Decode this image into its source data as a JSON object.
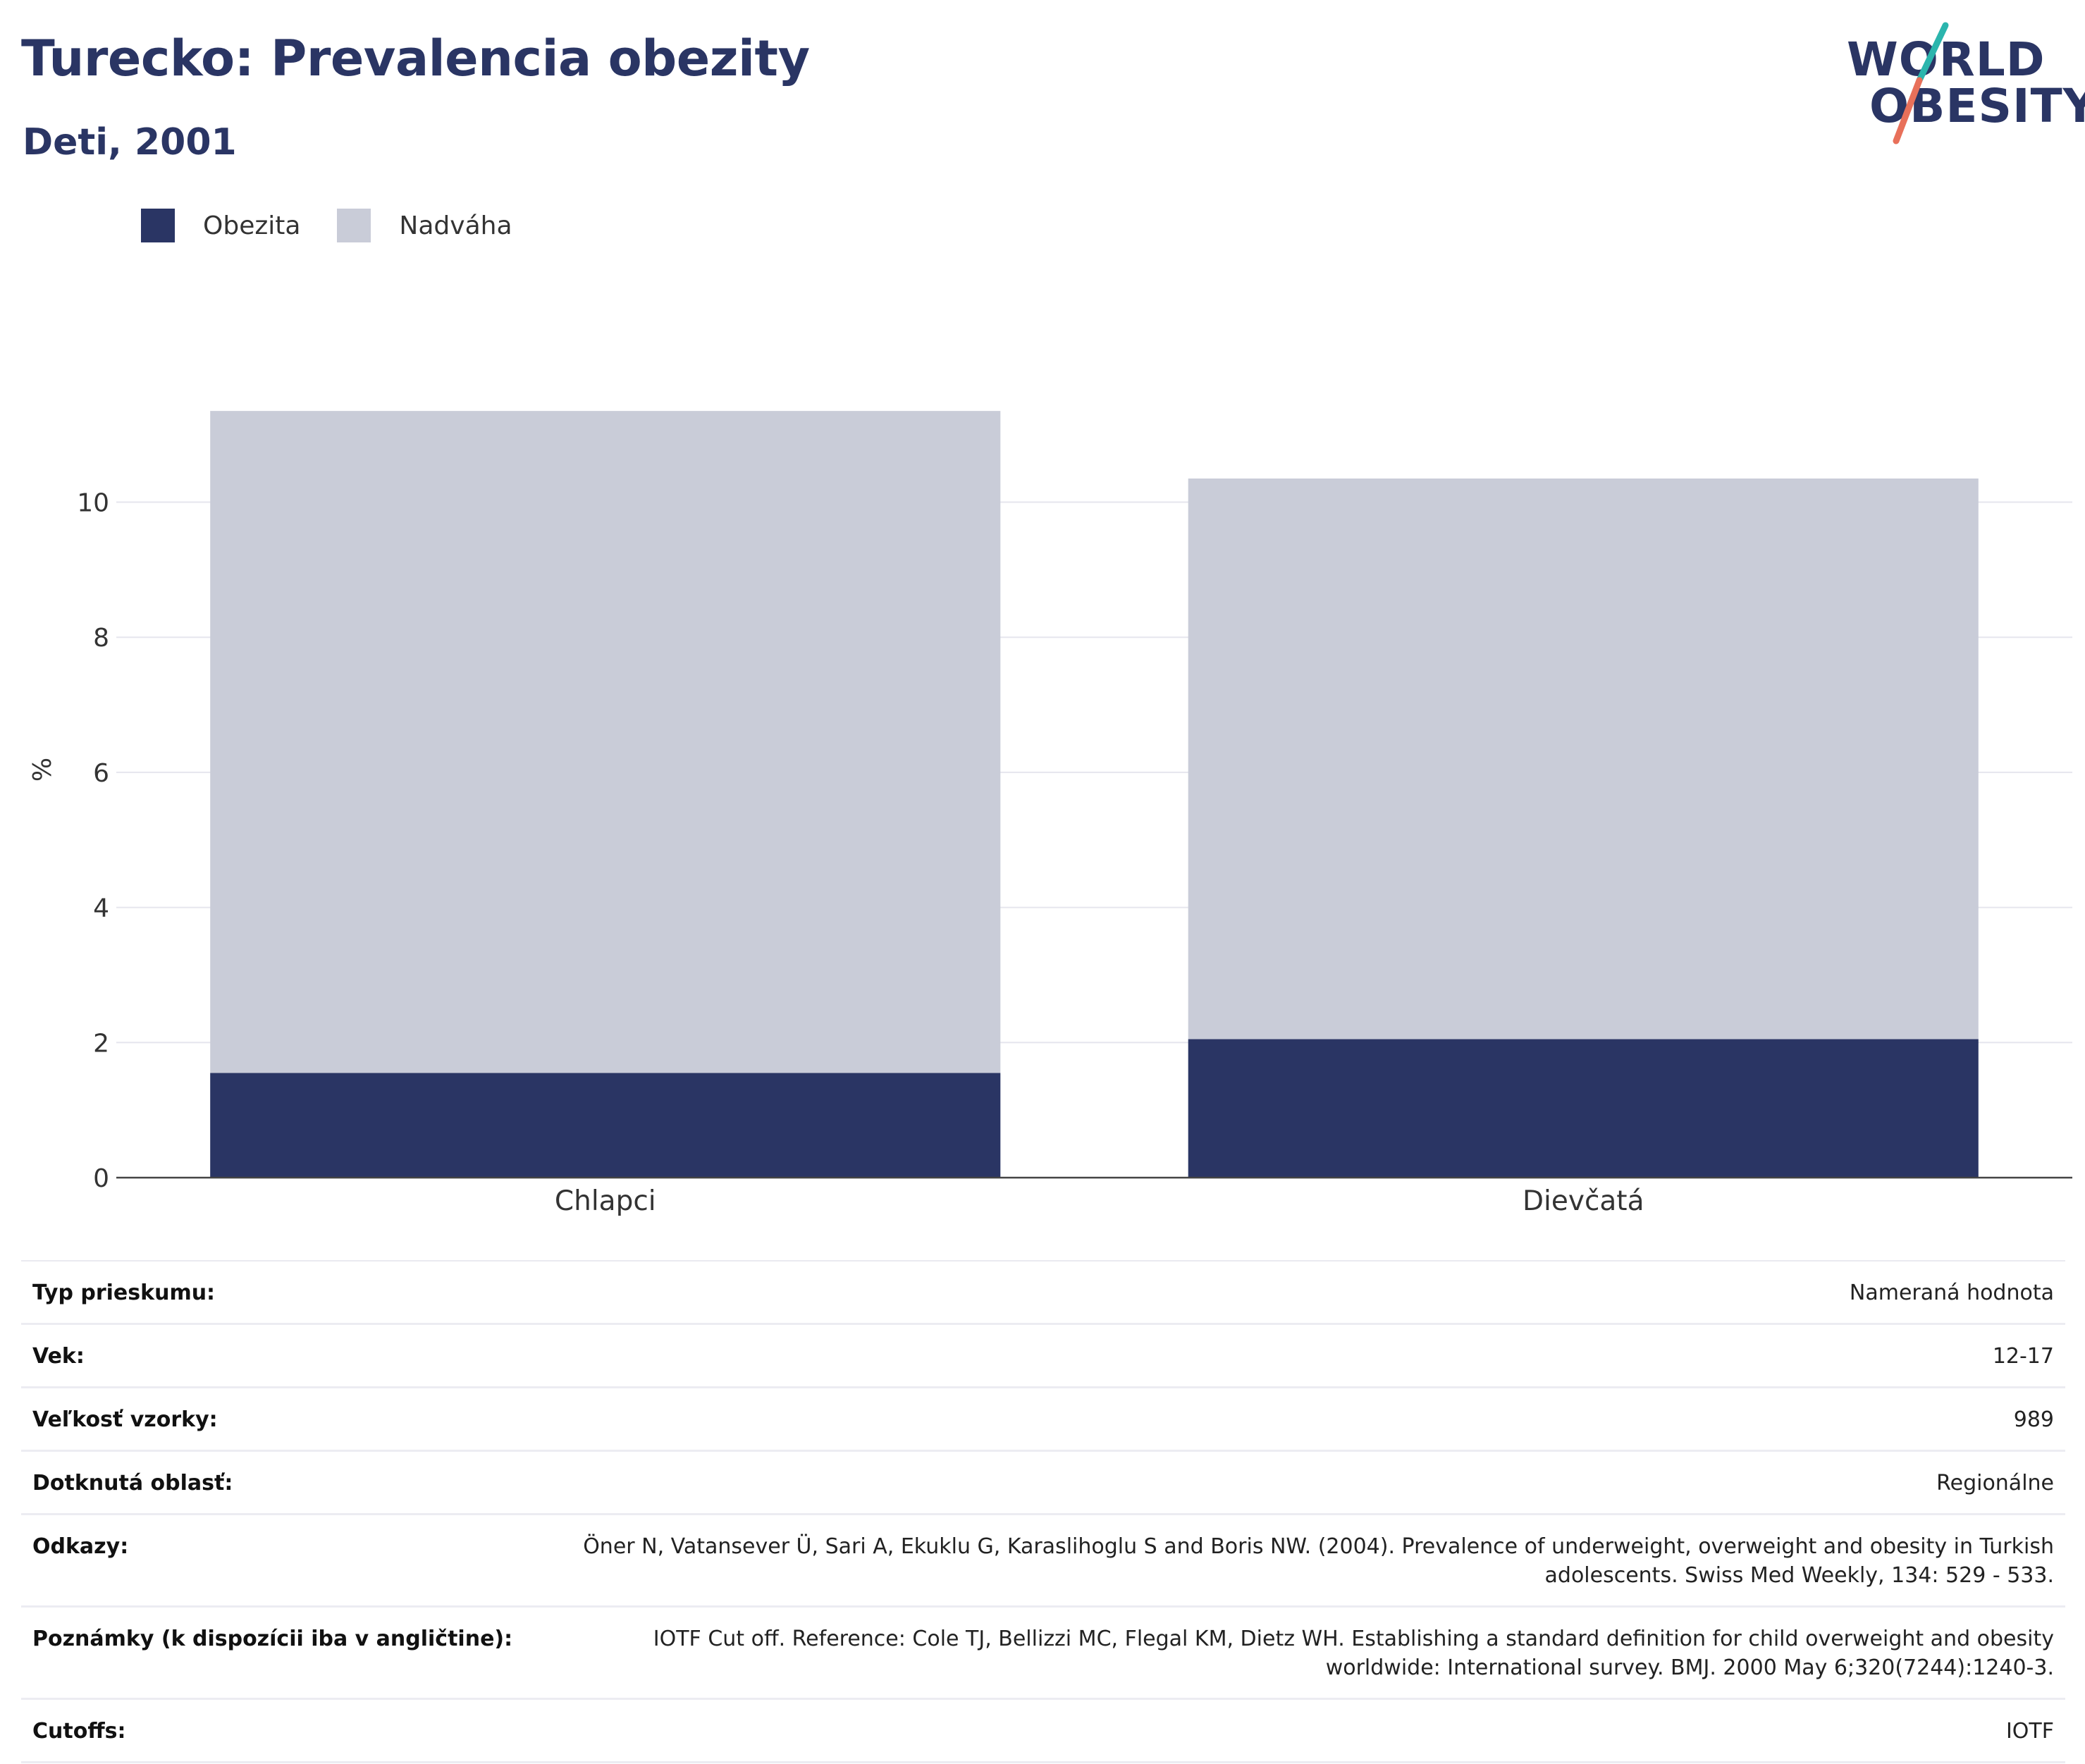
{
  "header": {
    "title": "Turecko: Prevalencia obezity",
    "subtitle": "Deti, 2001"
  },
  "logo": {
    "line1": "WORLD",
    "line2": "OBESITY"
  },
  "legend": [
    {
      "label": "Obezita",
      "color": "#2a3564"
    },
    {
      "label": "Nadváha",
      "color": "#c9ccd8"
    }
  ],
  "chart_data": {
    "type": "bar",
    "stacked": true,
    "categories": [
      "Chlapci",
      "Dievčatá"
    ],
    "series": [
      {
        "name": "Obezita",
        "values": [
          1.55,
          2.05
        ],
        "color": "#2a3564"
      },
      {
        "name": "Nadváha",
        "values": [
          9.8,
          8.3
        ],
        "color": "#c9ccd8"
      }
    ],
    "ylabel": "%",
    "ylim": [
      0,
      11.8
    ],
    "yticks": [
      0,
      2,
      4,
      6,
      8,
      10
    ],
    "grid": true,
    "legend_position": "top-left"
  },
  "info": [
    {
      "label": "Typ prieskumu:",
      "value": "Nameraná hodnota"
    },
    {
      "label": "Vek:",
      "value": "12-17"
    },
    {
      "label": "Veľkosť vzorky:",
      "value": "989"
    },
    {
      "label": "Dotknutá oblasť:",
      "value": "Regionálne"
    },
    {
      "label": "Odkazy:",
      "value": "Öner N, Vatansever Ü, Sari A, Ekuklu G, Karaslihoglu S and Boris NW. (2004). Prevalence of underweight, overweight and obesity in Turkish adolescents. Swiss Med Weekly, 134: 529 - 533."
    },
    {
      "label": "Poznámky (k dispozícii iba v angličtine):",
      "value": "IOTF Cut off. Reference: Cole TJ, Bellizzi MC, Flegal KM, Dietz WH. Establishing a standard definition for child overweight and obesity worldwide: International survey. BMJ. 2000 May 6;320(7244):1240-3."
    },
    {
      "label": "Cutoffs:",
      "value": "IOTF"
    }
  ]
}
